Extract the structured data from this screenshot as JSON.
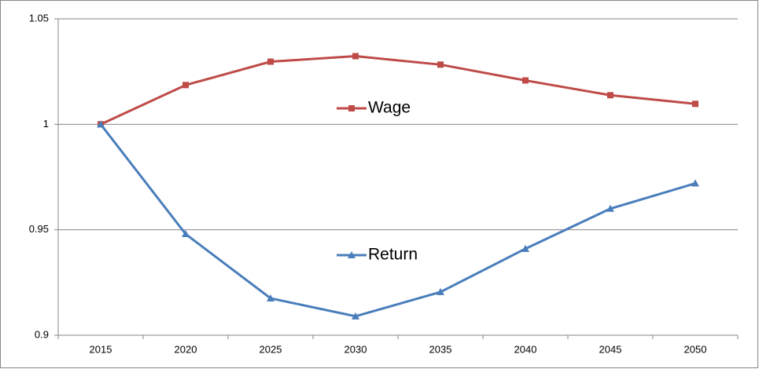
{
  "chart_data": {
    "type": "line",
    "categories": [
      "2015",
      "2020",
      "2025",
      "2030",
      "2035",
      "2040",
      "2045",
      "2050"
    ],
    "series": [
      {
        "name": "Wage",
        "color": "#be4b48",
        "values": [
          1.0,
          1.0186,
          1.0297,
          1.0323,
          1.0283,
          1.0208,
          1.0138,
          1.0097
        ]
      },
      {
        "name": "Return",
        "color": "#4a7ebb",
        "values": [
          1.0,
          0.948,
          0.9175,
          0.909,
          0.9205,
          0.941,
          0.96,
          0.972
        ]
      }
    ],
    "ylim": [
      0.9,
      1.05
    ],
    "yticks": [
      0.9,
      0.95,
      1,
      1.05
    ],
    "grid": true
  }
}
